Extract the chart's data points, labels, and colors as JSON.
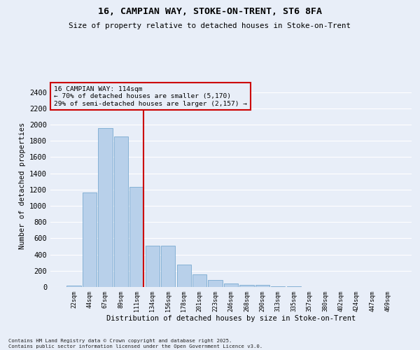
{
  "title1": "16, CAMPIAN WAY, STOKE-ON-TRENT, ST6 8FA",
  "title2": "Size of property relative to detached houses in Stoke-on-Trent",
  "xlabel": "Distribution of detached houses by size in Stoke-on-Trent",
  "ylabel": "Number of detached properties",
  "categories": [
    "22sqm",
    "44sqm",
    "67sqm",
    "89sqm",
    "111sqm",
    "134sqm",
    "156sqm",
    "178sqm",
    "201sqm",
    "223sqm",
    "246sqm",
    "268sqm",
    "290sqm",
    "313sqm",
    "335sqm",
    "357sqm",
    "380sqm",
    "402sqm",
    "424sqm",
    "447sqm",
    "469sqm"
  ],
  "values": [
    20,
    1160,
    1960,
    1850,
    1230,
    510,
    510,
    275,
    155,
    85,
    40,
    30,
    28,
    10,
    5,
    3,
    2,
    2,
    2,
    2,
    2
  ],
  "bar_color": "#b8d0ea",
  "bar_edge_color": "#7aaad0",
  "vline_color": "#cc0000",
  "vline_x_index": 4,
  "annotation_line1": "16 CAMPIAN WAY: 114sqm",
  "annotation_line2": "← 70% of detached houses are smaller (5,170)",
  "annotation_line3": "29% of semi-detached houses are larger (2,157) →",
  "annotation_box_color": "#cc0000",
  "ylim": [
    0,
    2500
  ],
  "yticks": [
    0,
    200,
    400,
    600,
    800,
    1000,
    1200,
    1400,
    1600,
    1800,
    2000,
    2200,
    2400
  ],
  "bg_color": "#e8eef8",
  "grid_color": "#ffffff",
  "footer": "Contains HM Land Registry data © Crown copyright and database right 2025.\nContains public sector information licensed under the Open Government Licence v3.0."
}
